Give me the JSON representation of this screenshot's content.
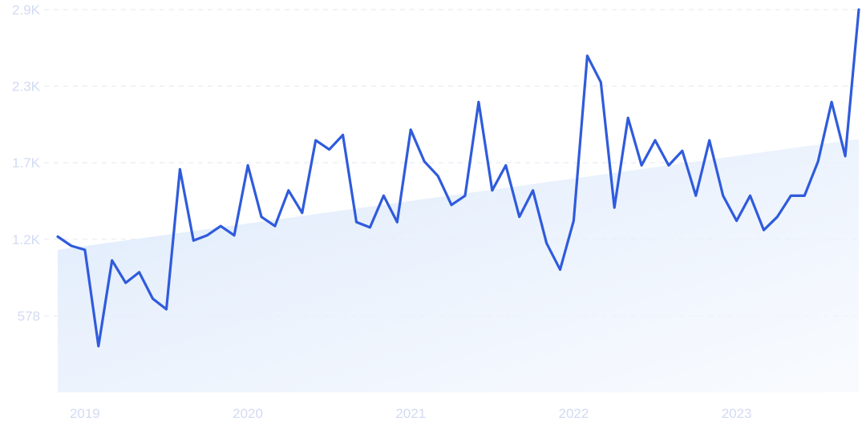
{
  "chart_data": {
    "type": "line",
    "title": "",
    "xlabel": "",
    "ylabel": "",
    "x_range": [
      "2018-11",
      "2023-10"
    ],
    "ylim": [
      0,
      2900
    ],
    "y_ticks": [
      {
        "value": 578,
        "label": "578"
      },
      {
        "value": 1160,
        "label": "1.2K"
      },
      {
        "value": 1740,
        "label": "1.7K"
      },
      {
        "value": 2320,
        "label": "2.3K"
      },
      {
        "value": 2900,
        "label": "2.9K"
      }
    ],
    "x_ticks": [
      {
        "value": "2019-01",
        "label": "2019"
      },
      {
        "value": "2020-01",
        "label": "2020"
      },
      {
        "value": "2021-01",
        "label": "2021"
      },
      {
        "value": "2022-01",
        "label": "2022"
      },
      {
        "value": "2023-01",
        "label": "2023"
      }
    ],
    "grid": true,
    "legend": "none",
    "series": [
      {
        "color": "#2f5bdc",
        "x": [
          "2018-11",
          "2018-12",
          "2019-01",
          "2019-02",
          "2019-03",
          "2019-04",
          "2019-05",
          "2019-06",
          "2019-07",
          "2019-08",
          "2019-09",
          "2019-10",
          "2019-11",
          "2019-12",
          "2020-01",
          "2020-02",
          "2020-03",
          "2020-04",
          "2020-05",
          "2020-06",
          "2020-07",
          "2020-08",
          "2020-09",
          "2020-10",
          "2020-11",
          "2020-12",
          "2021-01",
          "2021-02",
          "2021-03",
          "2021-04",
          "2021-05",
          "2021-06",
          "2021-07",
          "2021-08",
          "2021-09",
          "2021-10",
          "2021-11",
          "2021-12",
          "2022-01",
          "2022-02",
          "2022-03",
          "2022-04",
          "2022-05",
          "2022-06",
          "2022-07",
          "2022-08",
          "2022-09",
          "2022-10",
          "2022-11",
          "2022-12",
          "2023-01",
          "2023-02",
          "2023-03",
          "2023-04",
          "2023-05",
          "2023-06",
          "2023-07",
          "2023-08",
          "2023-09",
          "2023-10"
        ],
        "values": [
          1180,
          1110,
          1080,
          350,
          1000,
          830,
          910,
          710,
          630,
          1690,
          1150,
          1190,
          1260,
          1190,
          1720,
          1330,
          1260,
          1530,
          1360,
          1910,
          1840,
          1950,
          1290,
          1250,
          1490,
          1290,
          1990,
          1750,
          1640,
          1420,
          1490,
          2200,
          1530,
          1720,
          1330,
          1530,
          1130,
          930,
          1300,
          2550,
          2350,
          1400,
          2080,
          1720,
          1910,
          1720,
          1830,
          1490,
          1910,
          1490,
          1300,
          1490,
          1230,
          1330,
          1490,
          1490,
          1750,
          2200,
          1790,
          2900
        ]
      }
    ],
    "trend": {
      "color": "#dbe8fb",
      "start": {
        "x": "2018-11",
        "y": 1080
      },
      "end": {
        "x": "2023-10",
        "y": 1920
      }
    }
  }
}
